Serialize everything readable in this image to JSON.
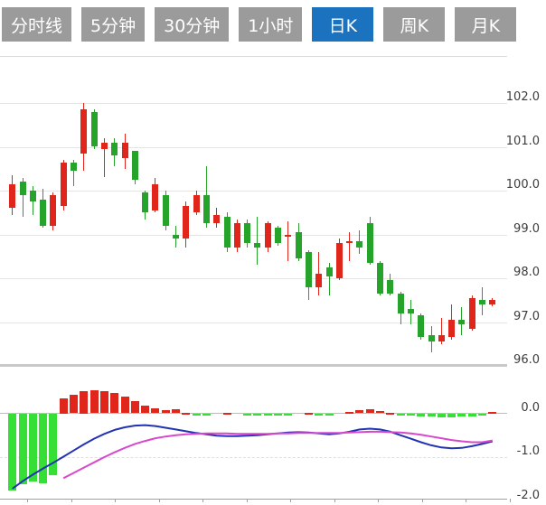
{
  "tabs": {
    "items": [
      {
        "label": "分时线",
        "active": false
      },
      {
        "label": "5分钟",
        "active": false
      },
      {
        "label": "30分钟",
        "active": false
      },
      {
        "label": "1小时",
        "active": false
      },
      {
        "label": "日K",
        "active": true
      },
      {
        "label": "周K",
        "active": false
      },
      {
        "label": "月K",
        "active": false
      }
    ]
  },
  "colors": {
    "tab_bg": "#9b9b9b",
    "tab_active_bg": "#1b72bf",
    "tab_text": "#ffffff",
    "candle_up": "#e0261a",
    "candle_down": "#26a32b",
    "macd_bar_up": "#e0261a",
    "macd_bar_down": "#35df35",
    "dif_line": "#2233b2",
    "dea_line": "#d848cc",
    "grid": "#e4e4e4",
    "axis": "#a0a0a0",
    "zero_line": "#f0a8a8",
    "label_text": "#3c3c3c"
  },
  "chart_data": {
    "type": "candlestick+macd",
    "title": "",
    "grid": true,
    "legend": "none",
    "price_axis": {
      "side": "right",
      "tick_labels": [
        "102.0",
        "101.0",
        "100.0",
        "99.0",
        "98.0",
        "97.0",
        "96.0"
      ],
      "tick_values": [
        102.0,
        101.0,
        100.0,
        99.0,
        98.0,
        97.0,
        96.0
      ],
      "min": 96.0,
      "max": 102.0
    },
    "macd_axis": {
      "side": "right",
      "tick_labels": [
        "0.0",
        "-1.0",
        "-2.0"
      ],
      "tick_values": [
        0.0,
        -1.0,
        -2.0
      ],
      "min": -2.0,
      "max": 0.6
    },
    "candles": [
      {
        "o": 99.6,
        "h": 100.35,
        "l": 99.45,
        "c": 100.15
      },
      {
        "o": 100.2,
        "h": 100.3,
        "l": 99.4,
        "c": 99.9
      },
      {
        "o": 100.0,
        "h": 100.1,
        "l": 99.45,
        "c": 99.75
      },
      {
        "o": 99.8,
        "h": 100.05,
        "l": 99.15,
        "c": 99.2
      },
      {
        "o": 99.2,
        "h": 99.95,
        "l": 99.1,
        "c": 99.9
      },
      {
        "o": 99.65,
        "h": 100.7,
        "l": 99.55,
        "c": 100.65
      },
      {
        "o": 100.65,
        "h": 100.7,
        "l": 100.1,
        "c": 100.45
      },
      {
        "o": 100.85,
        "h": 102.0,
        "l": 100.45,
        "c": 101.85
      },
      {
        "o": 101.8,
        "h": 101.85,
        "l": 100.95,
        "c": 101.0
      },
      {
        "o": 100.95,
        "h": 101.2,
        "l": 100.3,
        "c": 101.1
      },
      {
        "o": 101.1,
        "h": 101.2,
        "l": 100.55,
        "c": 100.8
      },
      {
        "o": 100.75,
        "h": 101.3,
        "l": 100.5,
        "c": 101.1
      },
      {
        "o": 100.9,
        "h": 100.9,
        "l": 100.15,
        "c": 100.25
      },
      {
        "o": 99.95,
        "h": 100.0,
        "l": 99.35,
        "c": 99.5
      },
      {
        "o": 99.55,
        "h": 100.3,
        "l": 99.5,
        "c": 100.15
      },
      {
        "o": 99.9,
        "h": 100.0,
        "l": 99.1,
        "c": 99.2
      },
      {
        "o": 99.0,
        "h": 99.2,
        "l": 98.7,
        "c": 98.9
      },
      {
        "o": 98.9,
        "h": 99.75,
        "l": 98.7,
        "c": 99.65
      },
      {
        "o": 99.5,
        "h": 100.0,
        "l": 99.45,
        "c": 99.9
      },
      {
        "o": 99.9,
        "h": 100.55,
        "l": 99.15,
        "c": 99.25
      },
      {
        "o": 99.25,
        "h": 99.6,
        "l": 99.15,
        "c": 99.45
      },
      {
        "o": 99.4,
        "h": 99.5,
        "l": 98.6,
        "c": 98.7
      },
      {
        "o": 98.7,
        "h": 99.35,
        "l": 98.6,
        "c": 99.25
      },
      {
        "o": 99.25,
        "h": 99.35,
        "l": 98.7,
        "c": 98.8
      },
      {
        "o": 98.8,
        "h": 99.4,
        "l": 98.3,
        "c": 98.7
      },
      {
        "o": 98.7,
        "h": 99.3,
        "l": 98.6,
        "c": 99.25
      },
      {
        "o": 99.15,
        "h": 99.2,
        "l": 98.75,
        "c": 98.8
      },
      {
        "o": 98.95,
        "h": 99.3,
        "l": 98.4,
        "c": 99.0
      },
      {
        "o": 99.05,
        "h": 99.25,
        "l": 98.4,
        "c": 98.45
      },
      {
        "o": 98.6,
        "h": 98.65,
        "l": 97.5,
        "c": 97.8
      },
      {
        "o": 97.8,
        "h": 98.6,
        "l": 97.6,
        "c": 98.1
      },
      {
        "o": 98.25,
        "h": 98.35,
        "l": 97.6,
        "c": 98.05
      },
      {
        "o": 98.0,
        "h": 98.9,
        "l": 97.95,
        "c": 98.8
      },
      {
        "o": 98.8,
        "h": 99.05,
        "l": 98.4,
        "c": 98.85
      },
      {
        "o": 98.85,
        "h": 99.1,
        "l": 98.55,
        "c": 98.7
      },
      {
        "o": 99.25,
        "h": 99.4,
        "l": 98.3,
        "c": 98.35
      },
      {
        "o": 98.35,
        "h": 98.4,
        "l": 97.6,
        "c": 97.65
      },
      {
        "o": 97.95,
        "h": 98.1,
        "l": 97.6,
        "c": 97.65
      },
      {
        "o": 97.65,
        "h": 97.7,
        "l": 96.95,
        "c": 97.2
      },
      {
        "o": 97.3,
        "h": 97.5,
        "l": 96.95,
        "c": 97.2
      },
      {
        "o": 97.15,
        "h": 97.2,
        "l": 96.6,
        "c": 96.65
      },
      {
        "o": 96.7,
        "h": 96.9,
        "l": 96.3,
        "c": 96.55
      },
      {
        "o": 96.55,
        "h": 97.1,
        "l": 96.5,
        "c": 96.7
      },
      {
        "o": 96.65,
        "h": 97.4,
        "l": 96.6,
        "c": 97.05
      },
      {
        "o": 97.05,
        "h": 97.35,
        "l": 96.7,
        "c": 96.95
      },
      {
        "o": 96.85,
        "h": 97.6,
        "l": 96.8,
        "c": 97.55
      },
      {
        "o": 97.5,
        "h": 97.8,
        "l": 97.15,
        "c": 97.4
      },
      {
        "o": 97.4,
        "h": 97.55,
        "l": 97.35,
        "c": 97.5
      }
    ],
    "macd": {
      "histogram": [
        -1.75,
        -1.6,
        -1.55,
        -1.58,
        -1.4,
        0.34,
        0.43,
        0.5,
        0.53,
        0.51,
        0.46,
        0.39,
        0.28,
        0.18,
        0.11,
        0.07,
        0.09,
        0.02,
        -0.04,
        -0.04,
        0.0,
        0.02,
        -0.01,
        -0.04,
        -0.04,
        -0.05,
        -0.05,
        -0.03,
        0.0,
        0.02,
        -0.04,
        -0.04,
        0.0,
        0.04,
        0.07,
        0.1,
        0.06,
        0.02,
        -0.02,
        -0.04,
        -0.06,
        -0.07,
        -0.08,
        -0.09,
        -0.07,
        -0.06,
        -0.04,
        0.03
      ],
      "dif": [
        -1.72,
        -1.55,
        -1.4,
        -1.26,
        -1.13,
        -0.99,
        -0.85,
        -0.71,
        -0.58,
        -0.47,
        -0.38,
        -0.32,
        -0.28,
        -0.27,
        -0.29,
        -0.33,
        -0.37,
        -0.41,
        -0.45,
        -0.48,
        -0.51,
        -0.52,
        -0.52,
        -0.51,
        -0.5,
        -0.48,
        -0.46,
        -0.44,
        -0.43,
        -0.44,
        -0.46,
        -0.48,
        -0.46,
        -0.42,
        -0.37,
        -0.35,
        -0.37,
        -0.42,
        -0.5,
        -0.58,
        -0.66,
        -0.73,
        -0.78,
        -0.8,
        -0.79,
        -0.75,
        -0.7,
        -0.64
      ],
      "dea": [
        null,
        null,
        null,
        null,
        null,
        -1.48,
        -1.36,
        -1.24,
        -1.12,
        -1.0,
        -0.89,
        -0.79,
        -0.7,
        -0.63,
        -0.57,
        -0.53,
        -0.5,
        -0.48,
        -0.47,
        -0.46,
        -0.46,
        -0.46,
        -0.47,
        -0.47,
        -0.47,
        -0.47,
        -0.46,
        -0.46,
        -0.45,
        -0.45,
        -0.45,
        -0.45,
        -0.45,
        -0.44,
        -0.43,
        -0.42,
        -0.42,
        -0.43,
        -0.44,
        -0.46,
        -0.49,
        -0.53,
        -0.57,
        -0.61,
        -0.64,
        -0.66,
        -0.66,
        -0.62
      ]
    }
  }
}
